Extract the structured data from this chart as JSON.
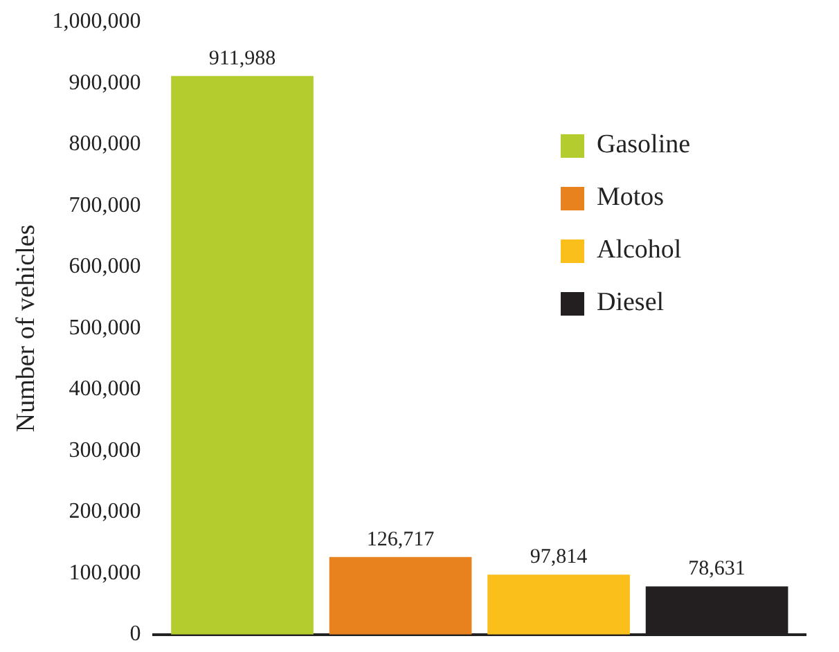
{
  "chart_data": {
    "type": "bar",
    "ylabel": "Number of vehicles",
    "categories": [
      null
    ],
    "series": [
      {
        "name": "Gasoline",
        "color": "#b5cc2e",
        "values": [
          911988
        ],
        "value_labels": [
          "911,988"
        ]
      },
      {
        "name": "Motos",
        "color": "#e8821e",
        "values": [
          126717
        ],
        "value_labels": [
          "126,717"
        ]
      },
      {
        "name": "Alcohol",
        "color": "#fbbf1b",
        "values": [
          97814
        ],
        "value_labels": [
          "97,814"
        ]
      },
      {
        "name": "Diesel",
        "color": "#231f20",
        "values": [
          78631
        ],
        "value_labels": [
          "78,631"
        ]
      }
    ],
    "ylim": [
      0,
      1000000
    ],
    "yticks": [
      {
        "value": 0,
        "label": "0"
      },
      {
        "value": 100000,
        "label": "100,000"
      },
      {
        "value": 200000,
        "label": "200,000"
      },
      {
        "value": 300000,
        "label": "300,000"
      },
      {
        "value": 400000,
        "label": "400,000"
      },
      {
        "value": 500000,
        "label": "500,000"
      },
      {
        "value": 600000,
        "label": "600,000"
      },
      {
        "value": 700000,
        "label": "700,000"
      },
      {
        "value": 800000,
        "label": "800,000"
      },
      {
        "value": 900000,
        "label": "900,000"
      },
      {
        "value": 1000000,
        "label": "1,000,000"
      }
    ],
    "grid": false,
    "legend": "right",
    "tick_labels": "y"
  }
}
